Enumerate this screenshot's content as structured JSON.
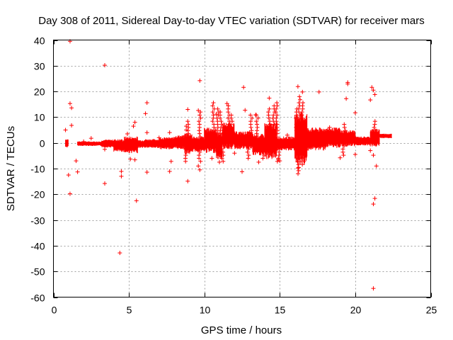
{
  "chart_data": {
    "type": "scatter",
    "title": "Day 308 of 2011, Sidereal Day-to-day VTEC variation (SDTVAR) for receiver mars",
    "xlabel": "GPS time / hours",
    "ylabel": "SDTVAR / TECUs",
    "xlim": [
      0,
      25
    ],
    "ylim": [
      -60,
      40
    ],
    "xticks": [
      0,
      5,
      10,
      15,
      20,
      25
    ],
    "yticks": [
      -60,
      -50,
      -40,
      -30,
      -20,
      -10,
      0,
      10,
      20,
      30,
      40
    ],
    "grid": true,
    "marker": "+",
    "marker_color": "#ff0000",
    "series": [
      {
        "name": "SDTVAR",
        "points": [
          [
            1.1,
            39.5
          ],
          [
            3.4,
            30.2
          ],
          [
            9.7,
            24.2
          ],
          [
            12.6,
            21.6
          ],
          [
            14.3,
            17.4
          ],
          [
            16.2,
            21.9
          ],
          [
            16.5,
            19.8
          ],
          [
            17.6,
            19.8
          ],
          [
            19.5,
            23.5
          ],
          [
            19.5,
            22.9
          ],
          [
            19.4,
            17.2
          ],
          [
            21.1,
            21.6
          ],
          [
            21.2,
            20.5
          ],
          [
            21.3,
            18.8
          ],
          [
            21.0,
            16.7
          ],
          [
            1.1,
            15.3
          ],
          [
            1.2,
            13.6
          ],
          [
            6.2,
            15.6
          ],
          [
            6.1,
            11.4
          ],
          [
            8.9,
            13.0
          ],
          [
            9.6,
            12.6
          ],
          [
            11.5,
            15.3
          ],
          [
            10.8,
            11.2
          ],
          [
            12.7,
            12.7
          ],
          [
            13.4,
            10.9
          ],
          [
            20.0,
            11.7
          ],
          [
            5.4,
            8.0
          ],
          [
            5.3,
            6.5
          ],
          [
            4.9,
            3.5
          ],
          [
            6.2,
            4.0
          ],
          [
            1.2,
            6.8
          ],
          [
            0.8,
            5.0
          ],
          [
            7.7,
            4.0
          ],
          [
            8.8,
            6.5
          ],
          [
            8.8,
            5.0
          ],
          [
            1.0,
            -12.5
          ],
          [
            1.1,
            -19.8
          ],
          [
            1.6,
            -11.3
          ],
          [
            1.5,
            -7.0
          ],
          [
            3.4,
            -15.8
          ],
          [
            3.4,
            -2.5
          ],
          [
            4.5,
            -11.1
          ],
          [
            4.5,
            -13.0
          ],
          [
            4.4,
            -42.8
          ],
          [
            5.5,
            -22.5
          ],
          [
            5.4,
            -6.6
          ],
          [
            6.2,
            -11.4
          ],
          [
            5.1,
            -6.3
          ],
          [
            7.7,
            -11.1
          ],
          [
            7.8,
            -7.2
          ],
          [
            8.9,
            -14.9
          ],
          [
            9.7,
            -10.5
          ],
          [
            9.6,
            -9.0
          ],
          [
            11.0,
            -7.5
          ],
          [
            12.5,
            -11.2
          ],
          [
            13.6,
            -7.5
          ],
          [
            16.2,
            -9.8
          ],
          [
            16.6,
            -7.2
          ],
          [
            19.0,
            -5.8
          ],
          [
            20.0,
            -4.5
          ],
          [
            21.0,
            -3.0
          ],
          [
            21.2,
            -4.8
          ],
          [
            21.4,
            -9.0
          ],
          [
            21.3,
            -21.6
          ],
          [
            21.2,
            -23.8
          ],
          [
            21.2,
            -56.6
          ],
          [
            14.9,
            -6.5
          ],
          [
            15.0,
            -7.0
          ],
          [
            10.5,
            -6.0
          ],
          [
            12.0,
            -4.0
          ],
          [
            2.5,
            1.8
          ],
          [
            13.0,
            4.0
          ],
          [
            17.5,
            1.5
          ],
          [
            15.5,
            3.0
          ],
          [
            18.3,
            6.0
          ],
          [
            4.0,
            -1.0
          ],
          [
            2.0,
            0.5
          ],
          [
            7.0,
            2.0
          ]
        ]
      }
    ],
    "bands": [
      [
        0.8,
        1.0,
        1.6,
        -1.8
      ],
      [
        1.6,
        3.2,
        0.6,
        -1.2
      ],
      [
        3.2,
        4.0,
        1.3,
        -1.8
      ],
      [
        4.0,
        4.7,
        1.5,
        -3.5
      ],
      [
        4.7,
        5.6,
        2.5,
        -4.0
      ],
      [
        5.6,
        6.0,
        1.2,
        -2.0
      ],
      [
        6.0,
        7.0,
        1.5,
        -2.0
      ],
      [
        7.0,
        8.0,
        2.2,
        -2.5
      ],
      [
        8.0,
        8.7,
        3.0,
        -2.5
      ],
      [
        8.7,
        9.2,
        4.0,
        -4.5
      ],
      [
        9.2,
        10.0,
        2.5,
        -3.5
      ],
      [
        10.0,
        10.8,
        6.0,
        -4.0
      ],
      [
        10.8,
        11.2,
        4.5,
        -6.5
      ],
      [
        11.2,
        12.0,
        8.0,
        -2.5
      ],
      [
        12.0,
        13.2,
        4.5,
        -2.5
      ],
      [
        13.2,
        14.0,
        3.5,
        -5.0
      ],
      [
        14.0,
        14.8,
        8.0,
        -6.5
      ],
      [
        14.8,
        16.0,
        2.5,
        -3.0
      ],
      [
        16.0,
        16.8,
        12.0,
        -9.0
      ],
      [
        16.8,
        18.0,
        6.0,
        -3.0
      ],
      [
        18.0,
        19.0,
        6.0,
        -2.0
      ],
      [
        19.0,
        20.0,
        5.0,
        -1.5
      ],
      [
        20.0,
        21.0,
        2.5,
        -1.0
      ],
      [
        21.0,
        21.6,
        5.5,
        -1.5
      ],
      [
        21.6,
        22.4,
        3.6,
        1.8
      ]
    ],
    "spikes": [
      [
        10.6,
        16
      ],
      [
        10.9,
        14
      ],
      [
        11.1,
        12
      ],
      [
        11.6,
        15
      ],
      [
        11.8,
        11
      ],
      [
        13.1,
        11
      ],
      [
        13.5,
        11
      ],
      [
        14.3,
        14
      ],
      [
        14.6,
        15
      ],
      [
        14.8,
        16
      ],
      [
        16.3,
        18
      ],
      [
        16.5,
        16
      ],
      [
        16.1,
        14
      ],
      [
        19.3,
        8
      ],
      [
        21.3,
        9
      ],
      [
        9.7,
        12
      ],
      [
        8.9,
        9
      ],
      [
        8.8,
        -8
      ],
      [
        9.7,
        -8
      ],
      [
        11.2,
        -8
      ],
      [
        12.9,
        -6
      ],
      [
        13.9,
        -7
      ],
      [
        14.9,
        -8
      ],
      [
        16.2,
        -12
      ],
      [
        16.5,
        -9
      ],
      [
        19.2,
        -5
      ]
    ]
  }
}
